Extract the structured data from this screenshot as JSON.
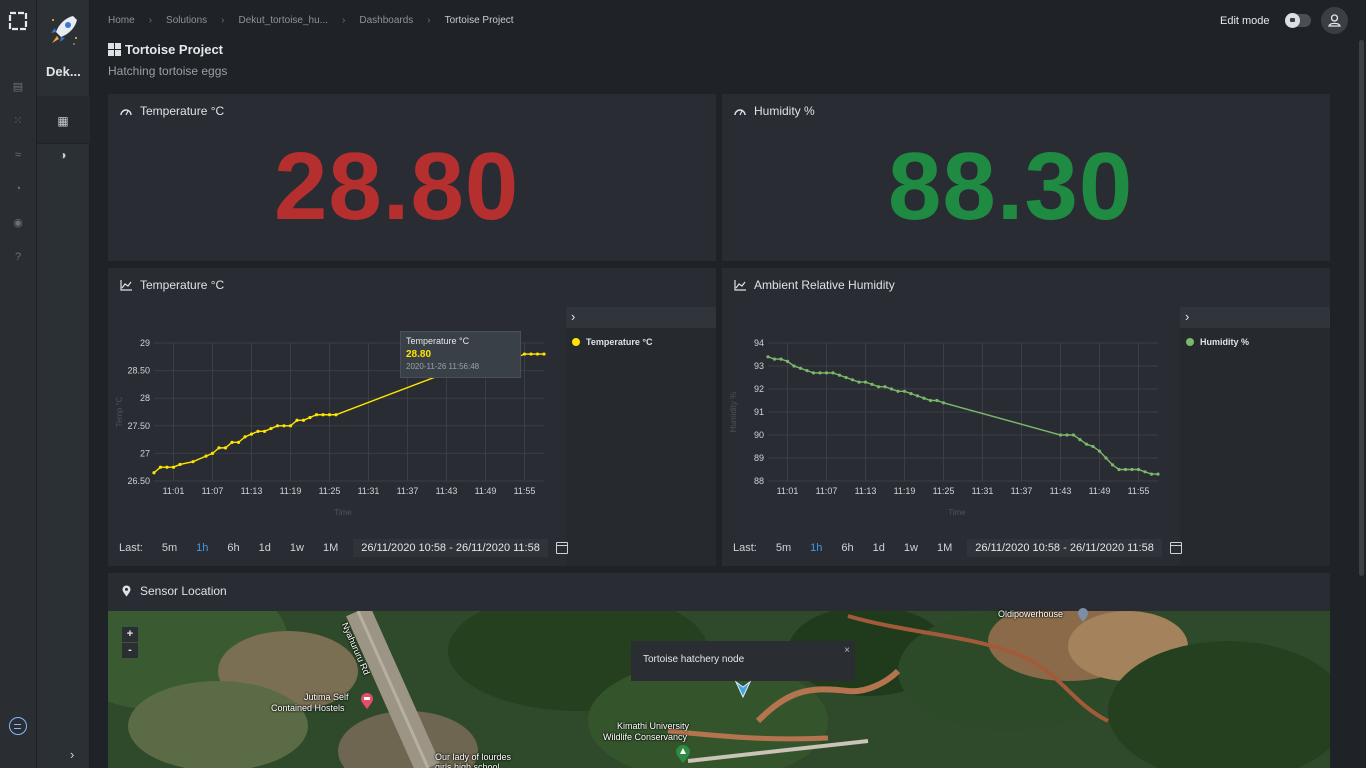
{
  "breadcrumb": {
    "items": [
      "Home",
      "Solutions",
      "Dekut_tortoise_hu...",
      "Dashboards",
      "Tortoise Project"
    ]
  },
  "topbar": {
    "edit_mode_label": "Edit mode"
  },
  "sidebar": {
    "abbreviation": "Dek..."
  },
  "dashboard": {
    "title": "Tortoise Project",
    "subtitle": "Hatching tortoise eggs"
  },
  "temp_card": {
    "title": "Temperature °C",
    "value": "28.80",
    "color": "#b52f2f"
  },
  "humidity_card": {
    "title": "Humidity %",
    "value": "88.30",
    "color": "#1f8a42"
  },
  "temp_chart_card": {
    "title": "Temperature °C",
    "legend": "Temperature °C",
    "ylabel": "Temp °C",
    "xlabel": "Time",
    "tooltip": {
      "title": "Temperature °C",
      "value": "28.80",
      "time": "2020-11-26 11:56:48"
    }
  },
  "humidity_chart_card": {
    "title": "Ambient Relative Humidity",
    "legend": "Humidity %",
    "ylabel": "Humidity %",
    "xlabel": "Time"
  },
  "timebar": {
    "last_label": "Last:",
    "options": [
      "5m",
      "1h",
      "6h",
      "1d",
      "1w",
      "1M"
    ],
    "active": "1h",
    "range": "26/11/2020 10:58 - 26/11/2020 11:58"
  },
  "map_card": {
    "title": "Sensor Location",
    "zoom_in": "+",
    "zoom_out": "-",
    "popup_text": "Tortoise hatchery node",
    "popup_close": "×",
    "labels": {
      "road": "Nyahururu Rd",
      "oldpower": "Oldipowerhouse",
      "jutima_1": "Jutima Self",
      "jutima_2": "Contained Hostels",
      "kimathi_1": "Kimathi University",
      "kimathi_2": "Wildlife Conservancy",
      "lourdes_1": "Our lady of lourdes",
      "lourdes_2": "girls high school"
    }
  },
  "chart_data": [
    {
      "type": "line",
      "title": "Temperature °C",
      "xlabel": "Time",
      "ylabel": "Temp °C",
      "x_ticks": [
        "11:01",
        "11:07",
        "11:13",
        "11:19",
        "11:25",
        "11:31",
        "11:37",
        "11:43",
        "11:49",
        "11:55"
      ],
      "y_ticks": [
        "26.50",
        "27",
        "27.50",
        "28",
        "28.50",
        "29"
      ],
      "ylim": [
        26.5,
        29
      ],
      "xlim_minutes": [
        10.58,
        11.97
      ],
      "color": "#ffe500",
      "series": [
        {
          "name": "Temperature °C",
          "x": [
            "10:58",
            "10:59",
            "11:00",
            "11:01",
            "11:02",
            "11:04",
            "11:06",
            "11:07",
            "11:08",
            "11:09",
            "11:10",
            "11:11",
            "11:12",
            "11:13",
            "11:14",
            "11:15",
            "11:16",
            "11:17",
            "11:18",
            "11:19",
            "11:20",
            "11:21",
            "11:22",
            "11:23",
            "11:24",
            "11:25",
            "11:26",
            "11:45",
            "11:46",
            "11:47",
            "11:48",
            "11:49",
            "11:50",
            "11:51",
            "11:52",
            "11:53",
            "11:54",
            "11:55",
            "11:56",
            "11:57",
            "11:58"
          ],
          "y": [
            26.65,
            26.75,
            26.75,
            26.75,
            26.8,
            26.85,
            26.95,
            27.0,
            27.1,
            27.1,
            27.2,
            27.2,
            27.3,
            27.35,
            27.4,
            27.4,
            27.45,
            27.5,
            27.5,
            27.5,
            27.6,
            27.6,
            27.65,
            27.7,
            27.7,
            27.7,
            27.7,
            28.55,
            28.55,
            28.6,
            28.6,
            28.65,
            28.65,
            28.7,
            28.7,
            28.7,
            28.75,
            28.8,
            28.8,
            28.8,
            28.8
          ]
        }
      ]
    },
    {
      "type": "line",
      "title": "Ambient Relative Humidity",
      "xlabel": "Time",
      "ylabel": "Humidity %",
      "x_ticks": [
        "11:01",
        "11:07",
        "11:13",
        "11:19",
        "11:25",
        "11:31",
        "11:37",
        "11:43",
        "11:49",
        "11:55"
      ],
      "y_ticks": [
        "88",
        "89",
        "90",
        "91",
        "92",
        "93",
        "94"
      ],
      "ylim": [
        88,
        94
      ],
      "color": "#7cb86a",
      "series": [
        {
          "name": "Humidity %",
          "x": [
            "10:58",
            "10:59",
            "11:00",
            "11:01",
            "11:02",
            "11:03",
            "11:04",
            "11:05",
            "11:06",
            "11:07",
            "11:08",
            "11:09",
            "11:10",
            "11:11",
            "11:12",
            "11:13",
            "11:14",
            "11:15",
            "11:16",
            "11:17",
            "11:18",
            "11:19",
            "11:20",
            "11:21",
            "11:22",
            "11:23",
            "11:24",
            "11:25",
            "11:43",
            "11:44",
            "11:45",
            "11:46",
            "11:47",
            "11:48",
            "11:49",
            "11:50",
            "11:51",
            "11:52",
            "11:53",
            "11:54",
            "11:55",
            "11:56",
            "11:57",
            "11:58"
          ],
          "y": [
            93.4,
            93.3,
            93.3,
            93.2,
            93.0,
            92.9,
            92.8,
            92.7,
            92.7,
            92.7,
            92.7,
            92.6,
            92.5,
            92.4,
            92.3,
            92.3,
            92.2,
            92.1,
            92.1,
            92.0,
            91.9,
            91.9,
            91.8,
            91.7,
            91.6,
            91.5,
            91.5,
            91.4,
            90.0,
            90.0,
            90.0,
            89.8,
            89.6,
            89.5,
            89.3,
            89.0,
            88.7,
            88.5,
            88.5,
            88.5,
            88.5,
            88.4,
            88.3,
            88.3
          ]
        }
      ]
    }
  ]
}
